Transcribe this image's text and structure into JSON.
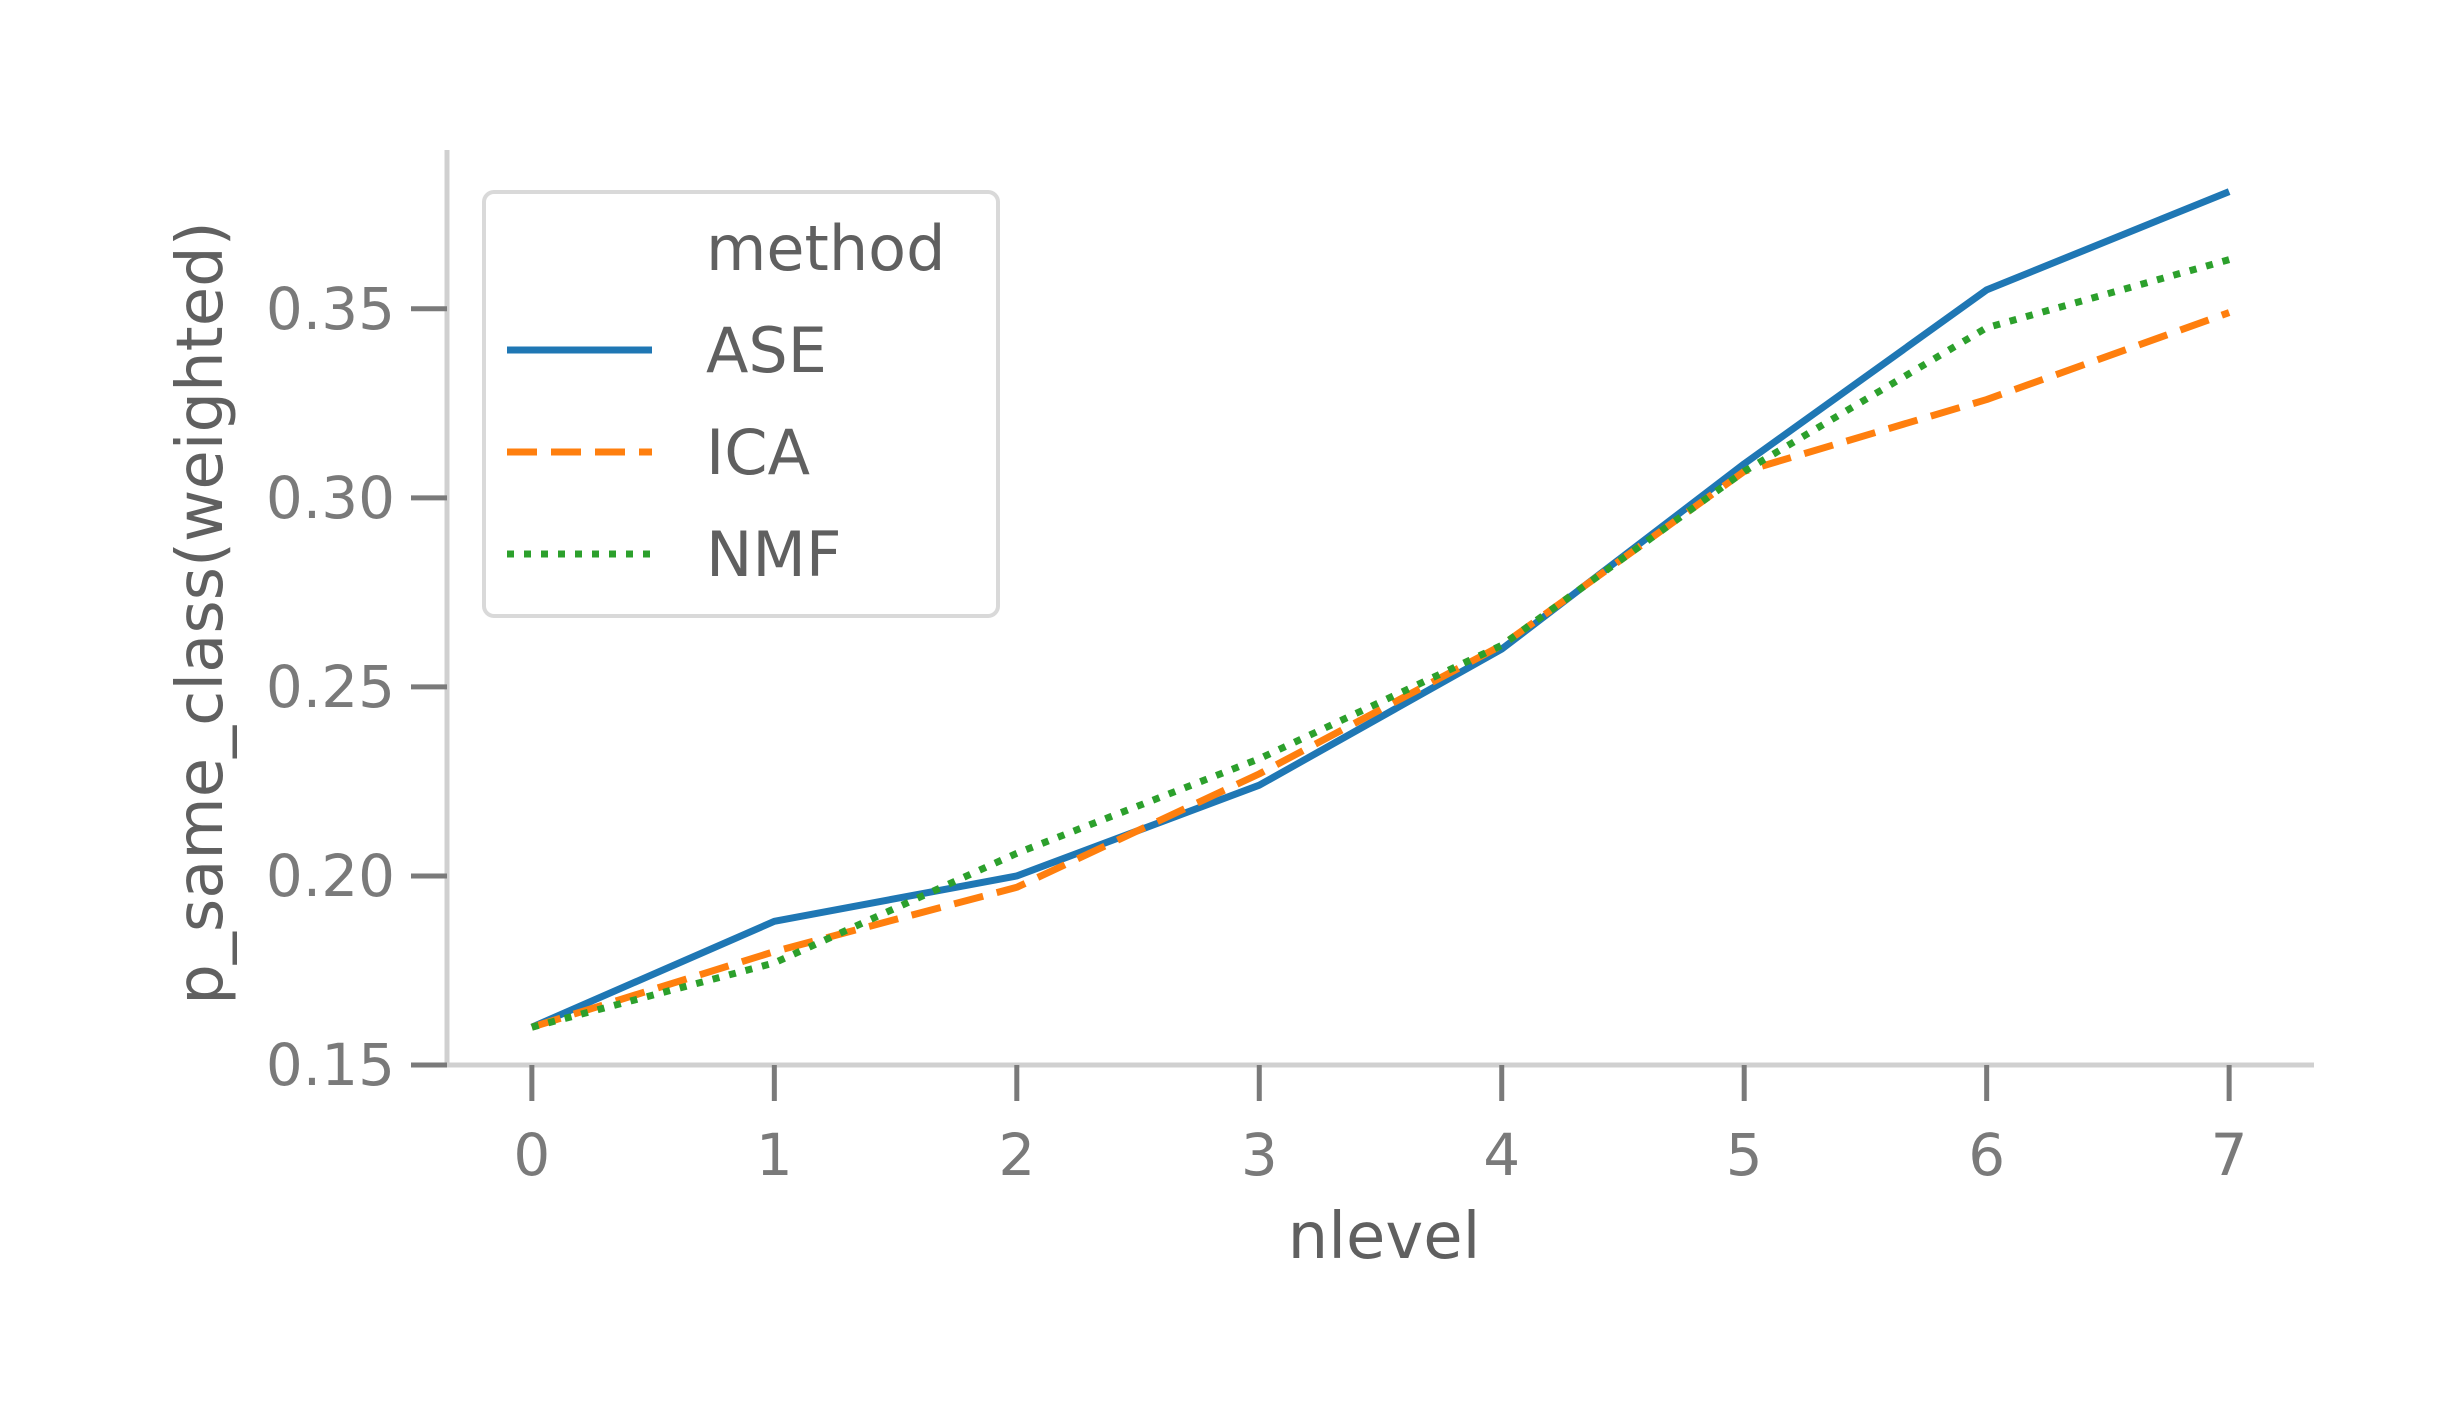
{
  "chart_data": {
    "type": "line",
    "xlabel": "nlevel",
    "ylabel": "p_same_class(weighted)",
    "x": [
      0,
      1,
      2,
      3,
      4,
      5,
      6,
      7
    ],
    "xlim": [
      -0.35,
      7.35
    ],
    "ylim": [
      0.15,
      0.392
    ],
    "x_ticks": [
      "0",
      "1",
      "2",
      "3",
      "4",
      "5",
      "6",
      "7"
    ],
    "y_ticks": [
      0.15,
      0.2,
      0.25,
      0.3,
      0.35
    ],
    "y_tick_labels": [
      "0.15",
      "0.20",
      "0.25",
      "0.30",
      "0.35"
    ],
    "grid": false,
    "legend": {
      "title": "method",
      "position": "top-left"
    },
    "series": [
      {
        "name": "ASE",
        "color": "#1f77b4",
        "dash": "solid",
        "values": [
          0.16,
          0.188,
          0.2,
          0.224,
          0.26,
          0.309,
          0.355,
          0.381
        ]
      },
      {
        "name": "ICA",
        "color": "#ff7f0e",
        "dash": "dashed",
        "values": [
          0.16,
          0.18,
          0.197,
          0.227,
          0.261,
          0.307,
          0.326,
          0.349
        ]
      },
      {
        "name": "NMF",
        "color": "#2ca02c",
        "dash": "dotted",
        "values": [
          0.16,
          0.177,
          0.206,
          0.231,
          0.261,
          0.307,
          0.345,
          0.363
        ]
      }
    ]
  }
}
